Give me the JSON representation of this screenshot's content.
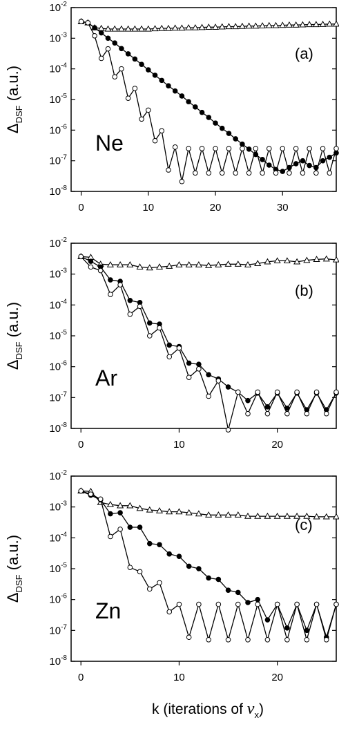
{
  "figure": {
    "xlabel_prefix": "k  (iterations of ",
    "xlabel_var": "v",
    "xlabel_sub": "x",
    "xlabel_suffix": ")"
  },
  "chart_data": [
    {
      "type": "line",
      "element_label": "Ne",
      "panel_label": "(a)",
      "ylabel_main": "Δ",
      "ylabel_sub": "DSF",
      "ylabel_unit": " (a.u.)",
      "yscale": "log",
      "ylim": [
        1e-08,
        0.01
      ],
      "xlim": [
        -1.5,
        38
      ],
      "xticks": [
        0,
        10,
        20,
        30
      ],
      "yticks": [
        "10-8",
        "10-7",
        "10-6",
        "10-5",
        "10-4",
        "10-3",
        "10-2"
      ],
      "series": [
        {
          "marker": "triangle-open",
          "x": [
            0,
            1,
            2,
            3,
            4,
            5,
            6,
            7,
            8,
            9,
            10,
            11,
            12,
            13,
            14,
            15,
            16,
            17,
            18,
            19,
            20,
            21,
            22,
            23,
            24,
            25,
            26,
            27,
            28,
            29,
            30,
            31,
            32,
            33,
            34,
            35,
            36,
            37,
            38
          ],
          "y": [
            0.0035,
            0.0032,
            0.0022,
            0.0021,
            0.002,
            0.002,
            0.002,
            0.002,
            0.002,
            0.002,
            0.002,
            0.00205,
            0.0021,
            0.0021,
            0.00215,
            0.00215,
            0.0022,
            0.0022,
            0.00225,
            0.0023,
            0.0023,
            0.00235,
            0.0024,
            0.0024,
            0.00245,
            0.0025,
            0.0025,
            0.00255,
            0.0026,
            0.0026,
            0.00265,
            0.0027,
            0.0027,
            0.00275,
            0.0028,
            0.0028,
            0.00285,
            0.0029,
            0.0029
          ]
        },
        {
          "marker": "circle-filled",
          "x": [
            0,
            1,
            2,
            3,
            4,
            5,
            6,
            7,
            8,
            9,
            10,
            11,
            12,
            13,
            14,
            15,
            16,
            17,
            18,
            19,
            20,
            21,
            22,
            23,
            24,
            25,
            26,
            27,
            28,
            29,
            30,
            31,
            32,
            33,
            34,
            35,
            36,
            37,
            38
          ],
          "y": [
            0.0035,
            0.0032,
            0.0022,
            0.0015,
            0.001,
            0.0007,
            0.00046,
            0.00031,
            0.00021,
            0.00014,
            9.3e-05,
            6.2e-05,
            4.2e-05,
            2.8e-05,
            1.9e-05,
            1.3e-05,
            8.5e-06,
            5.7e-06,
            3.8e-06,
            2.6e-06,
            1.7e-06,
            1.15e-06,
            7.8e-07,
            5.2e-07,
            3.5e-07,
            2.4e-07,
            1.6e-07,
            1.1e-07,
            7.2e-08,
            5.2e-08,
            4.5e-08,
            6e-08,
            8e-08,
            1e-07,
            7e-08,
            6e-08,
            1e-07,
            1.3e-07,
            1.8e-07
          ]
        },
        {
          "marker": "circle-open",
          "x": [
            0,
            1,
            2,
            3,
            4,
            5,
            6,
            7,
            8,
            9,
            10,
            11,
            12,
            13,
            14,
            15,
            16,
            17,
            18,
            19,
            20,
            21,
            22,
            23,
            24,
            25,
            26,
            27,
            28,
            29,
            30,
            31,
            32,
            33,
            34,
            35,
            36,
            37,
            38
          ],
          "y": [
            0.0035,
            0.0032,
            0.0012,
            0.00022,
            0.00045,
            5.5e-05,
            0.0001,
            1.1e-05,
            2.3e-05,
            2.3e-06,
            4.5e-06,
            4.5e-07,
            9.5e-07,
            5e-08,
            2.8e-07,
            2.1e-08,
            2.5e-07,
            4e-08,
            2.5e-07,
            4e-08,
            2.5e-07,
            4e-08,
            2.5e-07,
            4e-08,
            2.5e-07,
            4e-08,
            2.5e-07,
            4e-08,
            2.5e-07,
            4e-08,
            2.5e-07,
            4e-08,
            2.5e-07,
            4e-08,
            2.5e-07,
            4e-08,
            2.5e-07,
            4e-08,
            2.5e-07
          ]
        }
      ]
    },
    {
      "type": "line",
      "element_label": "Ar",
      "panel_label": "(b)",
      "ylabel_main": "Δ",
      "ylabel_sub": "DSF",
      "ylabel_unit": " (a.u.)",
      "yscale": "log",
      "ylim": [
        1e-08,
        0.01
      ],
      "xlim": [
        -1,
        26
      ],
      "xticks": [
        0,
        10,
        20
      ],
      "yticks": [
        "10-8",
        "10-7",
        "10-6",
        "10-5",
        "10-4",
        "10-3",
        "10-2"
      ],
      "series": [
        {
          "marker": "triangle-open",
          "x": [
            0,
            1,
            2,
            3,
            4,
            5,
            6,
            7,
            8,
            9,
            10,
            11,
            12,
            13,
            14,
            15,
            16,
            17,
            18,
            19,
            20,
            21,
            22,
            23,
            24,
            25,
            26
          ],
          "y": [
            0.0037,
            0.0035,
            0.0021,
            0.002,
            0.002,
            0.002,
            0.0017,
            0.0016,
            0.0017,
            0.0018,
            0.002,
            0.002,
            0.002,
            0.0019,
            0.002,
            0.0021,
            0.0021,
            0.002,
            0.0022,
            0.0025,
            0.0027,
            0.0027,
            0.0025,
            0.0028,
            0.003,
            0.0031,
            0.0029
          ]
        },
        {
          "marker": "circle-filled",
          "x": [
            0,
            1,
            2,
            3,
            4,
            5,
            6,
            7,
            8,
            9,
            10,
            11,
            12,
            13,
            14,
            15,
            16,
            17,
            18,
            19,
            20,
            21,
            22,
            23,
            24,
            25,
            26
          ],
          "y": [
            0.0037,
            0.0026,
            0.0017,
            0.00065,
            0.00058,
            0.00014,
            0.00012,
            2.6e-05,
            2.4e-05,
            5e-06,
            4.5e-06,
            1.3e-06,
            1.2e-06,
            5.5e-07,
            4e-07,
            2.2e-07,
            1.5e-07,
            8e-08,
            1.4e-07,
            5e-08,
            1.4e-07,
            4.5e-08,
            1.4e-07,
            4e-08,
            1.4e-07,
            4e-08,
            1.4e-07
          ]
        },
        {
          "marker": "circle-open",
          "x": [
            0,
            1,
            2,
            3,
            4,
            5,
            6,
            7,
            8,
            9,
            10,
            11,
            12,
            13,
            14,
            15,
            16,
            17,
            18,
            19,
            20,
            21,
            22,
            23,
            24,
            25,
            26
          ],
          "y": [
            0.0037,
            0.0017,
            0.0013,
            0.00022,
            0.00045,
            5e-05,
            9e-05,
            1e-05,
            1.8e-05,
            2.1e-06,
            4e-06,
            4.5e-07,
            8.5e-07,
            1.1e-07,
            3.5e-07,
            9e-09,
            1.5e-07,
            3e-08,
            1.5e-07,
            3e-08,
            1.5e-07,
            3e-08,
            1.5e-07,
            3e-08,
            1.5e-07,
            3e-08,
            1.5e-07
          ]
        }
      ]
    },
    {
      "type": "line",
      "element_label": "Zn",
      "panel_label": "(c)",
      "ylabel_main": "Δ",
      "ylabel_sub": "DSF",
      "ylabel_unit": " (a.u.)",
      "yscale": "log",
      "ylim": [
        1e-08,
        0.01
      ],
      "xlim": [
        -1,
        26
      ],
      "xticks": [
        0,
        10,
        20
      ],
      "yticks": [
        "10-8",
        "10-7",
        "10-6",
        "10-5",
        "10-4",
        "10-3",
        "10-2"
      ],
      "series": [
        {
          "marker": "triangle-open",
          "x": [
            0,
            1,
            2,
            3,
            4,
            5,
            6,
            7,
            8,
            9,
            10,
            11,
            12,
            13,
            14,
            15,
            16,
            17,
            18,
            19,
            20,
            21,
            22,
            23,
            24,
            25,
            26
          ],
          "y": [
            0.0033,
            0.0032,
            0.0014,
            0.0012,
            0.0011,
            0.0011,
            0.0009,
            0.0008,
            0.00075,
            0.0007,
            0.0007,
            0.00065,
            0.0006,
            0.00055,
            0.00055,
            0.00055,
            0.00055,
            0.0005,
            0.0005,
            0.0005,
            0.0005,
            0.0005,
            0.0005,
            0.0005,
            0.00048,
            0.00048,
            0.00048
          ]
        },
        {
          "marker": "circle-filled",
          "x": [
            0,
            1,
            2,
            3,
            4,
            5,
            6,
            7,
            8,
            9,
            10,
            11,
            12,
            13,
            14,
            15,
            16,
            17,
            18,
            19,
            20,
            21,
            22,
            23,
            24,
            25,
            26
          ],
          "y": [
            0.0033,
            0.0024,
            0.0017,
            0.0006,
            0.00065,
            0.00022,
            0.00022,
            6.5e-05,
            6e-05,
            3e-05,
            2.5e-05,
            1.2e-05,
            1e-05,
            5e-06,
            4.5e-06,
            2e-06,
            1.7e-06,
            8e-07,
            1e-06,
            2.2e-07,
            7e-07,
            1.2e-07,
            7e-07,
            1e-07,
            7e-07,
            6e-08,
            7e-07
          ]
        },
        {
          "marker": "circle-open",
          "x": [
            0,
            1,
            2,
            3,
            4,
            5,
            6,
            7,
            8,
            9,
            10,
            11,
            12,
            13,
            14,
            15,
            16,
            17,
            18,
            19,
            20,
            21,
            22,
            23,
            24,
            25,
            26
          ],
          "y": [
            0.0033,
            0.0026,
            0.0018,
            0.00011,
            0.00019,
            1.1e-05,
            8e-06,
            2.2e-06,
            3.5e-06,
            4e-07,
            7e-07,
            6e-08,
            7e-07,
            5e-08,
            7e-07,
            5e-08,
            7e-07,
            5e-08,
            7e-07,
            5e-08,
            7e-07,
            5e-08,
            7e-07,
            5e-08,
            7e-07,
            5e-08,
            7e-07
          ]
        }
      ]
    }
  ]
}
